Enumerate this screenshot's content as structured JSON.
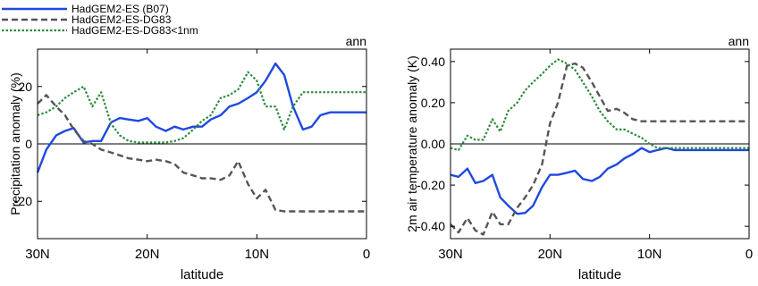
{
  "legend": [
    {
      "label": "HadGEM2-ES (B07)",
      "color": "#1f49e0",
      "dash": "solid"
    },
    {
      "label": "HadGEM2-ES-DG83",
      "color": "#555555",
      "dash": "dashed"
    },
    {
      "label": "HadGEM2-ES-DG83<1nm",
      "color": "#2e8b3e",
      "dash": "dotted"
    }
  ],
  "chart_data": [
    {
      "type": "line",
      "season_label": "ann",
      "xlabel": "latitude",
      "ylabel": "Precipitation anomaly (%)",
      "x_ticks": [
        "30N",
        "20N",
        "10N",
        "0"
      ],
      "x_tick_values": [
        30,
        20,
        10,
        0
      ],
      "xlim": [
        30,
        0
      ],
      "ylim": [
        -33,
        33
      ],
      "y_ticks": [
        "20",
        "0",
        "-20"
      ],
      "y_tick_values": [
        20,
        0,
        -20
      ],
      "x": [
        30,
        29.2,
        28.3,
        27.5,
        26.7,
        25.8,
        25,
        24.2,
        23.3,
        22.5,
        21.7,
        20.8,
        20,
        19.2,
        18.3,
        17.5,
        16.7,
        15.8,
        15,
        14.2,
        13.3,
        12.5,
        11.7,
        10.8,
        10,
        9.2,
        8.3,
        7.5,
        6.7,
        5.8,
        5,
        4.2,
        3.3,
        2.5,
        1.7,
        0.8,
        0
      ],
      "series": [
        {
          "name": "HadGEM2-ES (B07)",
          "values": [
            -10,
            -2,
            3,
            4.5,
            5.5,
            0.5,
            1,
            1,
            7.5,
            9,
            8.5,
            8,
            9,
            6,
            4.5,
            6,
            5,
            6,
            6,
            8.5,
            10,
            13,
            14,
            16,
            18,
            22,
            28,
            24,
            13,
            5,
            6,
            10,
            11,
            11,
            11,
            11,
            11
          ]
        },
        {
          "name": "HadGEM2-ES-DG83",
          "values": [
            14,
            17,
            13,
            10,
            5,
            1,
            0,
            -2,
            -3,
            -4,
            -5,
            -5.5,
            -6,
            -5.5,
            -6,
            -7,
            -10,
            -11,
            -12,
            -12,
            -12.5,
            -11,
            -6,
            -14,
            -19,
            -16,
            -23,
            -23.5,
            -23.5,
            -23.5,
            -23.5,
            -23.5,
            -23.5,
            -23.5,
            -23.5,
            -23.5,
            -23.5
          ]
        },
        {
          "name": "HadGEM2-ES-DG83<1nm",
          "values": [
            10,
            11,
            13,
            16,
            18,
            20,
            13,
            18,
            7,
            3,
            1,
            0.5,
            0.5,
            0.5,
            0.5,
            1,
            2,
            5,
            8,
            10,
            16,
            17,
            19,
            25,
            22,
            13,
            13,
            5,
            13,
            18,
            18,
            18,
            18,
            18,
            18,
            18,
            18
          ]
        }
      ]
    },
    {
      "type": "line",
      "season_label": "ann",
      "xlabel": "latitude",
      "ylabel": "2m air temperature anomaly (K)",
      "x_ticks": [
        "30N",
        "20N",
        "10N",
        "0"
      ],
      "x_tick_values": [
        30,
        20,
        10,
        0
      ],
      "xlim": [
        30,
        0
      ],
      "ylim": [
        -0.46,
        0.46
      ],
      "y_ticks": [
        "0.40",
        "0.20",
        "0.00",
        "-0.20",
        "-0.40"
      ],
      "y_tick_values": [
        0.4,
        0.2,
        0.0,
        -0.2,
        -0.4
      ],
      "x": [
        30,
        29.2,
        28.3,
        27.5,
        26.7,
        25.8,
        25,
        24.2,
        23.3,
        22.5,
        21.7,
        20.8,
        20,
        19.2,
        18.3,
        17.5,
        16.7,
        15.8,
        15,
        14.2,
        13.3,
        12.5,
        11.7,
        10.8,
        10,
        9.2,
        8.3,
        7.5,
        6.7,
        5.8,
        5,
        4.2,
        3.3,
        2.5,
        1.7,
        0.8,
        0
      ],
      "series": [
        {
          "name": "HadGEM2-ES (B07)",
          "values": [
            -0.15,
            -0.16,
            -0.12,
            -0.19,
            -0.18,
            -0.15,
            -0.26,
            -0.3,
            -0.34,
            -0.335,
            -0.3,
            -0.21,
            -0.15,
            -0.15,
            -0.14,
            -0.13,
            -0.17,
            -0.18,
            -0.16,
            -0.12,
            -0.1,
            -0.07,
            -0.05,
            -0.02,
            -0.04,
            -0.03,
            -0.02,
            -0.03,
            -0.03,
            -0.03,
            -0.03,
            -0.03,
            -0.03,
            -0.03,
            -0.03,
            -0.03,
            -0.03
          ]
        },
        {
          "name": "HadGEM2-ES-DG83",
          "values": [
            -0.39,
            -0.43,
            -0.36,
            -0.42,
            -0.44,
            -0.33,
            -0.39,
            -0.39,
            -0.31,
            -0.26,
            -0.2,
            -0.1,
            0.1,
            0.2,
            0.38,
            0.39,
            0.37,
            0.3,
            0.23,
            0.16,
            0.17,
            0.15,
            0.12,
            0.11,
            0.11,
            0.11,
            0.11,
            0.11,
            0.11,
            0.11,
            0.11,
            0.11,
            0.11,
            0.11,
            0.11,
            0.11,
            0.11
          ]
        },
        {
          "name": "HadGEM2-ES-DG83<1nm",
          "values": [
            -0.02,
            -0.03,
            0.04,
            0.02,
            0.02,
            0.12,
            0.06,
            0.16,
            0.2,
            0.26,
            0.3,
            0.34,
            0.38,
            0.41,
            0.39,
            0.36,
            0.3,
            0.23,
            0.16,
            0.11,
            0.07,
            0.07,
            0.05,
            0.03,
            0.0,
            -0.02,
            -0.02,
            -0.02,
            -0.02,
            -0.02,
            -0.02,
            -0.02,
            -0.02,
            -0.02,
            -0.02,
            -0.02,
            -0.02
          ]
        }
      ]
    }
  ]
}
